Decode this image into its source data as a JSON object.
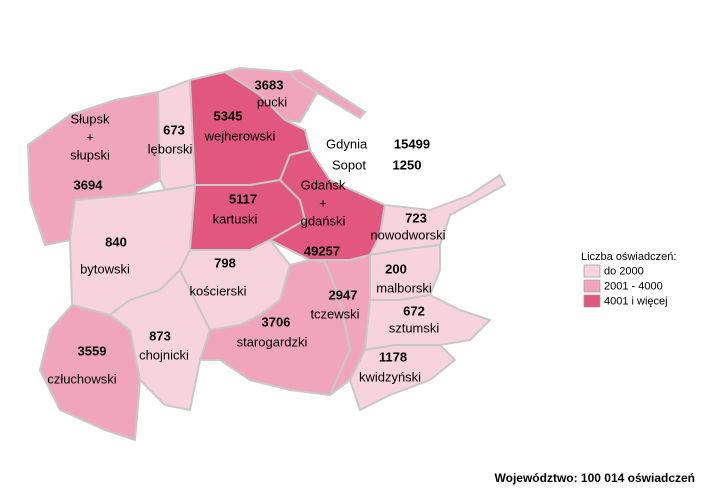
{
  "map": {
    "regions": [
      {
        "name": [
          "Słupsk",
          "+",
          "słupski"
        ],
        "value": 3694,
        "color": "#f0a5bd"
      },
      {
        "name": [
          "lęborski"
        ],
        "value": 673,
        "color": "#f7d3de"
      },
      {
        "name": [
          "wejherowski"
        ],
        "value": 5345,
        "color": "#e2577f"
      },
      {
        "name": [
          "pucki"
        ],
        "value": 3683,
        "color": "#f0a5bd"
      },
      {
        "name": [
          "kartuski"
        ],
        "value": 5117,
        "color": "#e2577f"
      },
      {
        "name": [
          "Gdańsk",
          "+",
          "gdański"
        ],
        "value": 49257,
        "color": "#e2577f"
      },
      {
        "name": [
          "nowodworski"
        ],
        "value": 723,
        "color": "#f7d3de"
      },
      {
        "name": [
          "bytowski"
        ],
        "value": 840,
        "color": "#f7d3de"
      },
      {
        "name": [
          "kościerski"
        ],
        "value": 798,
        "color": "#f7d3de"
      },
      {
        "name": [
          "człuchowski"
        ],
        "value": 3559,
        "color": "#f0a5bd"
      },
      {
        "name": [
          "chojnicki"
        ],
        "value": 873,
        "color": "#f7d3de"
      },
      {
        "name": [
          "starogardzki"
        ],
        "value": 3706,
        "color": "#f0a5bd"
      },
      {
        "name": [
          "tczewski"
        ],
        "value": 2947,
        "color": "#f0a5bd"
      },
      {
        "name": [
          "malborski"
        ],
        "value": 200,
        "color": "#f7d3de"
      },
      {
        "name": [
          "sztumski"
        ],
        "value": 672,
        "color": "#f7d3de"
      },
      {
        "name": [
          "kwidzyński"
        ],
        "value": 1178,
        "color": "#f7d3de"
      }
    ],
    "cities": [
      {
        "name": "Gdynia",
        "value": 15499
      },
      {
        "name": "Sopot",
        "value": 1250
      }
    ]
  },
  "legend": {
    "title": "Liczba oświadczeń:",
    "items": [
      {
        "label": "do 2000",
        "color": "#f7d3de"
      },
      {
        "label": "2001 - 4000",
        "color": "#f0a5bd"
      },
      {
        "label": "4001 i więcej",
        "color": "#e2577f"
      }
    ]
  },
  "footer": "Województwo: 100 014 oświadczeń"
}
